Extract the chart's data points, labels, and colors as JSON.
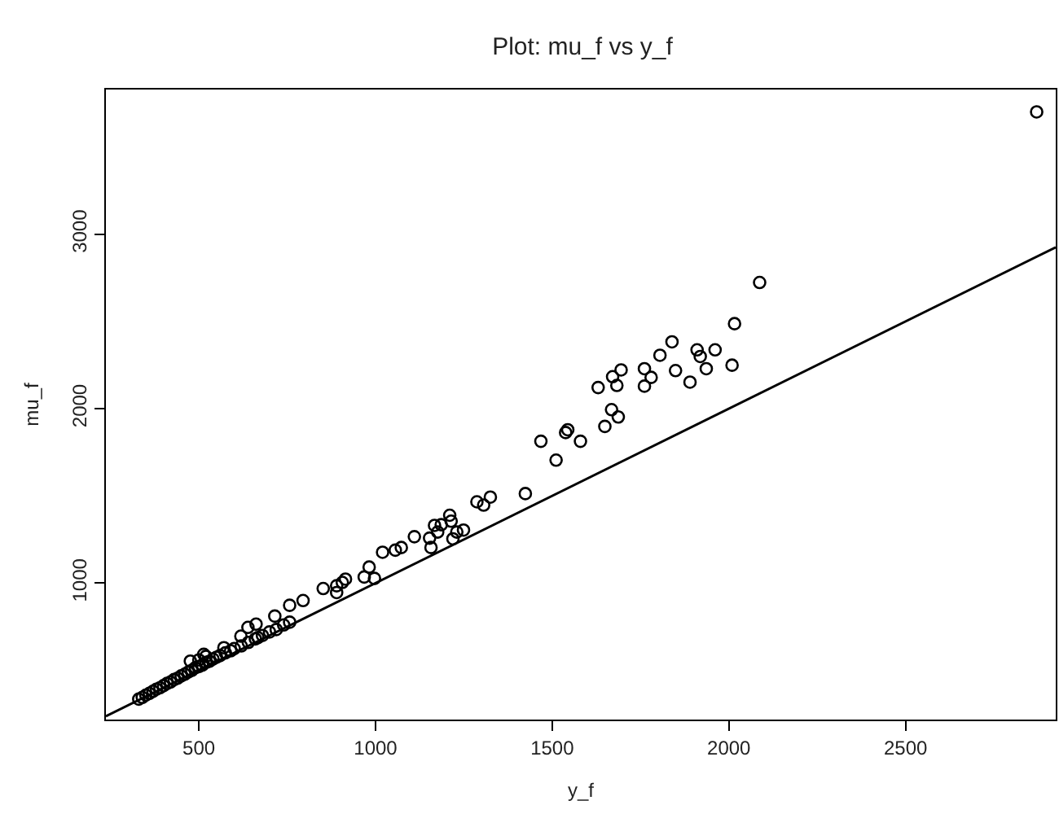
{
  "chart_data": {
    "type": "scatter",
    "title": "Plot: mu_f vs y_f",
    "xlabel": "y_f",
    "ylabel": "mu_f",
    "xlim": [
      237,
      2925
    ],
    "ylim": [
      218,
      3829
    ],
    "xticks": [
      500,
      1000,
      1500,
      2000,
      2500
    ],
    "yticks": [
      1000,
      2000,
      3000
    ],
    "marker": "circle",
    "series": [
      {
        "color": "#000000",
        "x": [
          2871,
          2087,
          2016,
          2009,
          1961,
          1936,
          1910,
          1919,
          1890,
          1839,
          1849,
          1805,
          1780,
          1761,
          1761,
          1695,
          1671,
          1683,
          1630,
          1668,
          1687,
          1649,
          1580,
          1544,
          1538,
          1468,
          1511,
          1424,
          1325,
          1306,
          1287,
          1249,
          1230,
          1219,
          1210,
          1214,
          1186,
          1176,
          1167,
          1153,
          1157,
          1110,
          1073,
          1056,
          1020,
          997,
          982,
          968,
          915,
          906,
          890,
          890,
          852,
          795,
          757,
          757,
          715,
          719,
          662,
          639,
          619,
          667,
          571,
          514,
          476,
          500,
          520,
          330,
          340,
          350,
          360,
          370,
          380,
          390,
          400,
          410,
          420,
          430,
          440,
          450,
          460,
          470,
          480,
          490,
          500,
          510,
          520,
          530,
          540,
          550,
          560,
          575,
          590,
          600,
          620,
          640,
          660,
          680,
          700,
          740
        ],
        "values": [
          3701,
          2723,
          2487,
          2249,
          2337,
          2229,
          2337,
          2299,
          2152,
          2383,
          2218,
          2306,
          2179,
          2229,
          2129,
          2222,
          2183,
          2133,
          2121,
          1994,
          1952,
          1898,
          1813,
          1879,
          1863,
          1813,
          1705,
          1513,
          1493,
          1447,
          1466,
          1304,
          1293,
          1254,
          1389,
          1355,
          1335,
          1293,
          1331,
          1258,
          1204,
          1266,
          1204,
          1189,
          1177,
          1027,
          1092,
          1035,
          1023,
          1004,
          985,
          946,
          969,
          900,
          873,
          776,
          811,
          734,
          765,
          746,
          696,
          688,
          630,
          592,
          553,
          560,
          580,
          335,
          345,
          358,
          368,
          380,
          392,
          400,
          412,
          425,
          433,
          447,
          455,
          468,
          478,
          490,
          500,
          515,
          522,
          530,
          545,
          552,
          565,
          575,
          585,
          600,
          612,
          625,
          640,
          660,
          680,
          700,
          720,
          760
        ]
      },
      {
        "type": "line",
        "color": "#000000",
        "marker": "none",
        "line_style": "solid",
        "x": [
          237,
          2925
        ],
        "values": [
          237,
          2925
        ]
      }
    ]
  }
}
